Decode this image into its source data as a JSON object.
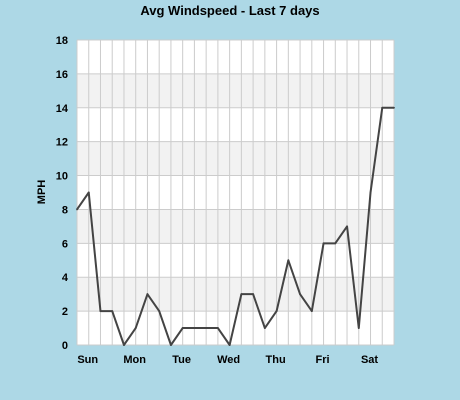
{
  "chart_data": {
    "type": "line",
    "title": "Avg Windspeed - Last 7 days",
    "xlabel": "",
    "ylabel": "MPH",
    "ylim": [
      0,
      18
    ],
    "yticks": [
      0,
      2,
      4,
      6,
      8,
      10,
      12,
      14,
      16,
      18
    ],
    "day_labels": [
      {
        "label": "Sun",
        "index": 1
      },
      {
        "label": "Mon",
        "index": 5
      },
      {
        "label": "Tue",
        "index": 9
      },
      {
        "label": "Wed",
        "index": 13
      },
      {
        "label": "Thu",
        "index": 17
      },
      {
        "label": "Fri",
        "index": 21
      },
      {
        "label": "Sat",
        "index": 25
      }
    ],
    "series": [
      {
        "values": [
          8,
          9,
          2,
          2,
          0,
          1,
          3,
          2,
          0,
          1,
          1,
          1,
          1,
          0,
          3,
          3,
          1,
          2,
          5,
          3,
          2,
          6,
          6,
          7,
          1,
          9,
          14,
          14
        ]
      }
    ],
    "grid": true,
    "colors": {
      "background": "#add8e6",
      "plot": "#ffffff",
      "band": "#f2f2f2",
      "grid": "#cccccc",
      "line": "#444444"
    }
  }
}
